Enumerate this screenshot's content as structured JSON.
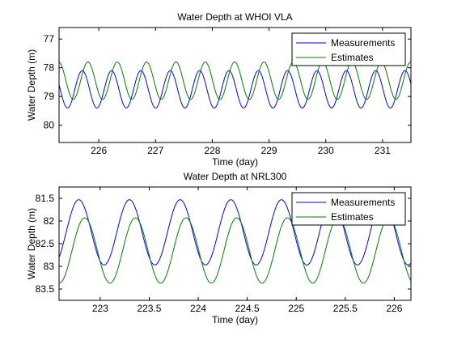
{
  "chart_data": [
    {
      "type": "line",
      "title": "Water Depth at WHOI VLA",
      "xlabel": "Time (day)",
      "ylabel": "Water Depth (m)",
      "xlim": [
        225.3,
        231.5
      ],
      "ylim": [
        76.6,
        80.6
      ],
      "y_reversed": true,
      "xticks": [
        "226",
        "227",
        "228",
        "229",
        "230",
        "231"
      ],
      "xtick_values": [
        226,
        227,
        228,
        229,
        230,
        231
      ],
      "yticks": [
        "77",
        "78",
        "79",
        "80"
      ],
      "ytick_values": [
        77,
        78,
        79,
        80
      ],
      "grid": false,
      "legend_position": "top-right",
      "series": [
        {
          "name": "Measurements",
          "color": "#0000ff",
          "mean": 78.75,
          "amplitude": 0.65,
          "period_days": 0.517,
          "first_trough_day": 225.45,
          "x": [
            225.3,
            225.45,
            225.71,
            225.97,
            226.23,
            226.49,
            226.75,
            227.01,
            227.27,
            227.53,
            227.79,
            228.05,
            228.31,
            228.57,
            228.83,
            229.09,
            229.35,
            229.61,
            229.87,
            230.13,
            230.39,
            230.65,
            230.91,
            231.17,
            231.43,
            231.5
          ],
          "y": [
            79.2,
            79.4,
            78.15,
            79.35,
            78.15,
            79.3,
            78.2,
            79.3,
            78.2,
            79.25,
            78.25,
            79.25,
            78.25,
            79.2,
            78.3,
            79.15,
            78.35,
            79.1,
            78.3,
            79.0,
            78.3,
            79.0,
            78.4,
            78.95,
            78.4,
            78.5
          ]
        },
        {
          "name": "Estimates",
          "color": "#008000",
          "mean": 78.45,
          "amplitude": 0.65,
          "period_days": 0.517,
          "first_trough_day": 225.55,
          "x": [
            225.3,
            225.55,
            225.81,
            226.07,
            226.33,
            226.59,
            226.85,
            227.11,
            227.37,
            227.63,
            227.89,
            228.15,
            228.41,
            228.67,
            228.93,
            229.19,
            229.45,
            229.71,
            229.97,
            230.23,
            230.49,
            230.75,
            231.01,
            231.27,
            231.5
          ],
          "y": [
            77.85,
            79.1,
            77.85,
            79.05,
            77.85,
            79.05,
            77.9,
            79.0,
            77.9,
            79.0,
            77.95,
            78.95,
            77.95,
            78.9,
            78.0,
            78.85,
            78.0,
            78.8,
            78.05,
            78.75,
            78.05,
            78.75,
            78.1,
            78.7,
            78.3
          ]
        }
      ]
    },
    {
      "type": "line",
      "title": "Water Depth at NRL300",
      "xlabel": "Time (day)",
      "ylabel": "Water Depth (m)",
      "xlim": [
        222.58,
        226.17
      ],
      "ylim": [
        81.25,
        83.75
      ],
      "y_reversed": true,
      "xticks": [
        "223",
        "223.5",
        "224",
        "224.5",
        "225",
        "225.5",
        "226"
      ],
      "xtick_values": [
        223,
        223.5,
        224,
        224.5,
        225,
        225.5,
        226
      ],
      "yticks": [
        "81.5",
        "82",
        "82.5",
        "83",
        "83.5"
      ],
      "ytick_values": [
        81.5,
        82,
        82.5,
        83,
        83.5
      ],
      "grid": false,
      "legend_position": "top-right",
      "series": [
        {
          "name": "Measurements",
          "color": "#0000ff",
          "mean": 82.25,
          "amplitude": 0.72,
          "period_days": 0.517,
          "first_trough_day": 223.04,
          "x": [
            222.58,
            222.78,
            223.04,
            223.3,
            223.56,
            223.82,
            224.08,
            224.34,
            224.6,
            224.86,
            225.12,
            225.38,
            225.64,
            225.9,
            226.17
          ],
          "y": [
            82.0,
            81.55,
            82.95,
            81.55,
            82.95,
            81.55,
            82.9,
            81.6,
            82.9,
            81.6,
            82.8,
            81.65,
            82.75,
            81.75,
            82.6
          ]
        },
        {
          "name": "Estimates",
          "color": "#008000",
          "mean": 82.65,
          "amplitude": 0.72,
          "period_days": 0.517,
          "first_trough_day": 223.1,
          "x": [
            222.58,
            222.84,
            223.1,
            223.36,
            223.62,
            223.88,
            224.14,
            224.4,
            224.66,
            224.92,
            225.18,
            225.44,
            225.7,
            225.96,
            226.17
          ],
          "y": [
            83.05,
            81.95,
            83.4,
            81.95,
            83.35,
            81.95,
            83.35,
            81.95,
            83.3,
            81.95,
            83.3,
            82.0,
            83.25,
            82.05,
            83.1
          ]
        }
      ]
    }
  ]
}
